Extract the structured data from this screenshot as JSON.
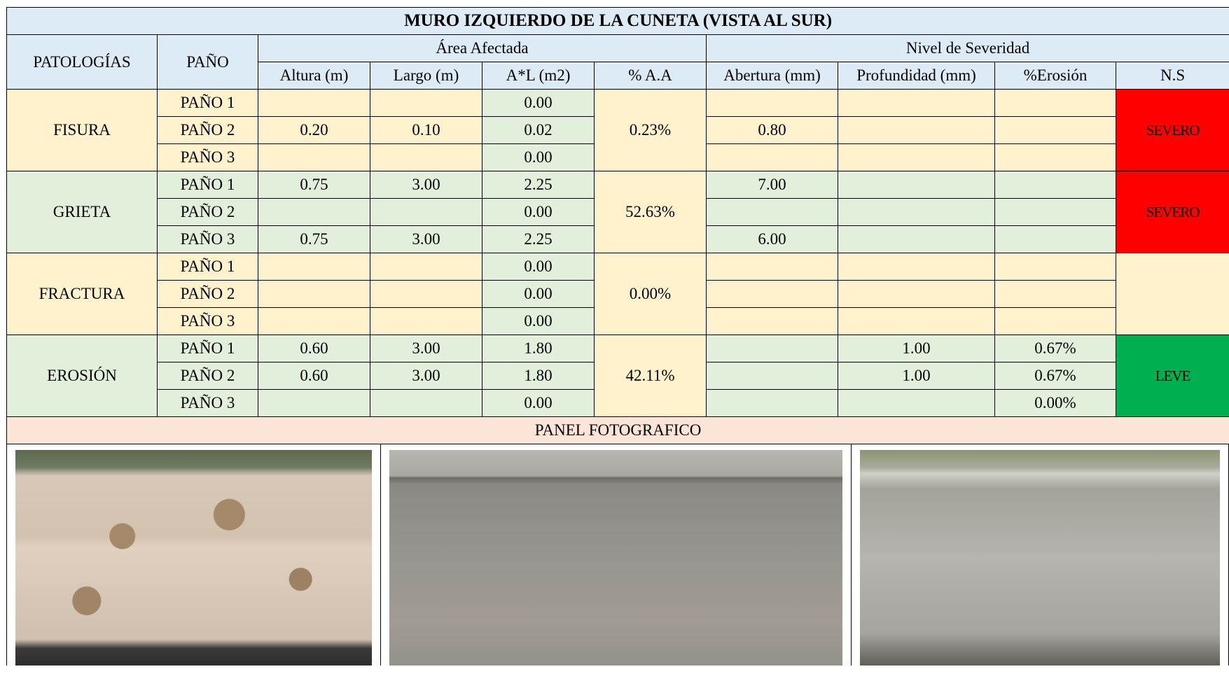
{
  "title": "MURO IZQUIERDO DE LA CUNETA (VISTA AL SUR)",
  "headers": {
    "patologias": "PATOLOGÍAS",
    "pano": "PAÑO",
    "area": "Área Afectada",
    "severidad": "Nivel de Severidad",
    "columns": [
      "Altura (m)",
      "Largo (m)",
      "A*L (m2)",
      "% A.A",
      "Abertura (mm)",
      "Profundidad (mm)",
      "%Erosión",
      "N.S"
    ]
  },
  "groups": [
    {
      "name": "FISURA",
      "pct": "0.23%",
      "ns": "SEVERO",
      "ns_color": "#ff0000",
      "rows": [
        {
          "pano": "PAÑO 1",
          "area": "0.00"
        },
        {
          "pano": "PAÑO 2",
          "altura": "0.20",
          "largo": "0.10",
          "area": "0.02",
          "abertura": "0.80"
        },
        {
          "pano": "PAÑO 3",
          "area": "0.00"
        }
      ]
    },
    {
      "name": "GRIETA",
      "pct": "52.63%",
      "ns": "SEVERO",
      "ns_color": "#ff0000",
      "rows": [
        {
          "pano": "PAÑO 1",
          "altura": "0.75",
          "largo": "3.00",
          "area": "2.25",
          "abertura": "7.00"
        },
        {
          "pano": "PAÑO 2",
          "area": "0.00"
        },
        {
          "pano": "PAÑO 3",
          "altura": "0.75",
          "largo": "3.00",
          "area": "2.25",
          "abertura": "6.00"
        }
      ]
    },
    {
      "name": "FRACTURA",
      "pct": "0.00%",
      "ns_color": "#fff2cc",
      "rows": [
        {
          "pano": "PAÑO 1",
          "area": "0.00"
        },
        {
          "pano": "PAÑO 2",
          "area": "0.00"
        },
        {
          "pano": "PAÑO 3",
          "area": "0.00"
        }
      ]
    },
    {
      "name": "EROSIÓN",
      "pct": "42.11%",
      "ns": "LEVE",
      "ns_color": "#00b050",
      "rows": [
        {
          "pano": "PAÑO 1",
          "altura": "0.60",
          "largo": "3.00",
          "area": "1.80",
          "profundidad": "1.00",
          "erosion": "0.67%"
        },
        {
          "pano": "PAÑO 2",
          "altura": "0.60",
          "largo": "3.00",
          "area": "1.80",
          "profundidad": "1.00",
          "erosion": "0.67%"
        },
        {
          "pano": "PAÑO 3",
          "area": "0.00",
          "erosion": "0.00%"
        }
      ]
    }
  ],
  "panel_title": "PANEL FOTOGRAFICO"
}
